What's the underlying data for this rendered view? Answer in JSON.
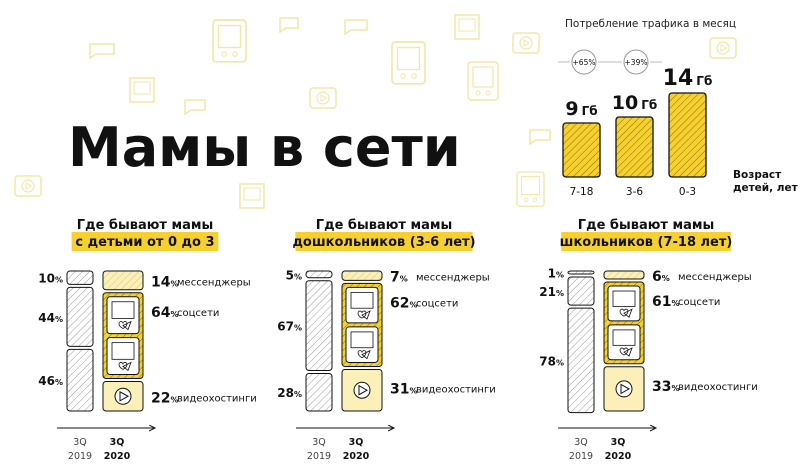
{
  "title": "Мамы в сети",
  "colors": {
    "yellow": "#F5D030",
    "yellow_light": "#FBF0B8",
    "hatch_gray": "#9A9A9A",
    "deco": "#F3E7A6",
    "ink": "#111111"
  },
  "chart_data": [
    {
      "type": "bar",
      "title": "Потребление трафика в месяц",
      "ylabel": "",
      "xlabel": "Возраст детей, лет",
      "categories": [
        "7-18",
        "3-6",
        "0-3"
      ],
      "values": [
        9,
        10,
        14
      ],
      "value_labels": [
        "9",
        "10",
        "14"
      ],
      "unit": "Гб",
      "growth": [
        "+65%",
        "+39%"
      ]
    },
    {
      "type": "bar",
      "title": "Где бывают мамы с детьми от 0 до 3",
      "title_lines": [
        "Где бывают мамы",
        "с детьми от 0 до 3"
      ],
      "categories": [
        "мессенджеры",
        "соцсети",
        "видеохостинги"
      ],
      "x_labels": [
        [
          "3Q",
          "2019"
        ],
        [
          "3Q",
          "2020"
        ]
      ],
      "series": [
        {
          "name": "3Q 2019",
          "values": [
            10,
            44,
            46
          ]
        },
        {
          "name": "3Q 2020",
          "values": [
            14,
            64,
            22
          ]
        }
      ]
    },
    {
      "type": "bar",
      "title": "Где бывают мамы дошкольников (3-6 лет)",
      "title_lines": [
        "Где бывают мамы",
        "дошкольников (3-6 лет)"
      ],
      "categories": [
        "мессенджеры",
        "соцсети",
        "видеохостинги"
      ],
      "x_labels": [
        [
          "3Q",
          "2019"
        ],
        [
          "3Q",
          "2020"
        ]
      ],
      "series": [
        {
          "name": "3Q 2019",
          "values": [
            5,
            67,
            28
          ]
        },
        {
          "name": "3Q 2020",
          "values": [
            7,
            62,
            31
          ]
        }
      ]
    },
    {
      "type": "bar",
      "title": "Где бывают мамы школьников (7-18 лет)",
      "title_lines": [
        "Где бывают мамы",
        "школьников (7-18 лет)"
      ],
      "categories": [
        "мессенджеры",
        "соцсети",
        "видеохостинги"
      ],
      "x_labels": [
        [
          "3Q",
          "2019"
        ],
        [
          "3Q",
          "2020"
        ]
      ],
      "series": [
        {
          "name": "3Q 2019",
          "values": [
            1,
            21,
            78
          ]
        },
        {
          "name": "3Q 2020",
          "values": [
            6,
            61,
            33
          ]
        }
      ]
    }
  ]
}
